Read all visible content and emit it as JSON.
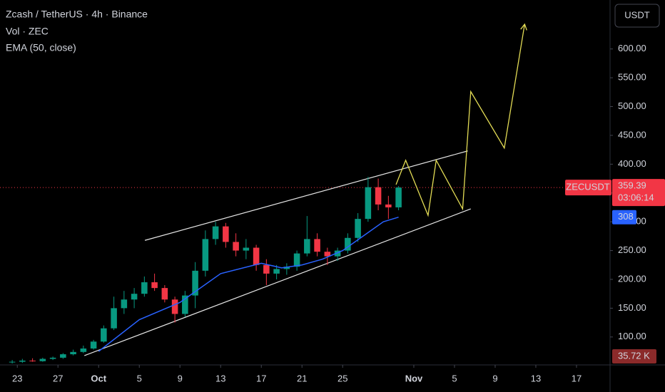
{
  "chart_data": {
    "type": "candlestick",
    "title": "Zcash / TetherUS · 4h · Binance",
    "indicators": [
      "Vol · ZEC",
      "EMA (50, close)"
    ],
    "currency": "USDT",
    "symbol": "ZECUSDT",
    "last_price": 359.39,
    "countdown": "03:06:14",
    "volume_label": "35.72 K",
    "colors": {
      "up": "#089981",
      "down": "#f23645",
      "ema": "#2962ff",
      "channel": "#e6e6e6",
      "projection": "#e3dc55",
      "price_line": "#f23645"
    },
    "xlim": [
      264.3,
      324.3
    ],
    "ylim": [
      51.5,
      685
    ],
    "grid": false,
    "xticks": [
      {
        "value": 266,
        "label": "23"
      },
      {
        "value": 270,
        "label": "27"
      },
      {
        "value": 274,
        "label": "Oct"
      },
      {
        "value": 278,
        "label": "5"
      },
      {
        "value": 282,
        "label": "9"
      },
      {
        "value": 286,
        "label": "13"
      },
      {
        "value": 290,
        "label": "17"
      },
      {
        "value": 294,
        "label": "21"
      },
      {
        "value": 298,
        "label": "25"
      },
      {
        "value": 305,
        "label": "Nov"
      },
      {
        "value": 309,
        "label": "5"
      },
      {
        "value": 313,
        "label": "9"
      },
      {
        "value": 317,
        "label": "13"
      },
      {
        "value": 321,
        "label": "17"
      }
    ],
    "yticks": [
      {
        "value": 100,
        "label": "100.00"
      },
      {
        "value": 150,
        "label": "150.00"
      },
      {
        "value": 200,
        "label": "200.00"
      },
      {
        "value": 250,
        "label": "250.00"
      },
      {
        "value": 300,
        "label": "300.00"
      },
      {
        "value": 350,
        "label": "350.00"
      },
      {
        "value": 400,
        "label": "400.00"
      },
      {
        "value": 450,
        "label": "450.00"
      },
      {
        "value": 500,
        "label": "500.00"
      },
      {
        "value": 550,
        "label": "550.00"
      },
      {
        "value": 600,
        "label": "600.00"
      }
    ],
    "x": [
      265.5,
      266.5,
      267.5,
      268.5,
      269.5,
      270.5,
      271.5,
      272.5,
      273.5,
      274.5,
      275.5,
      276.5,
      277.5,
      278.5,
      279.5,
      280.5,
      281.5,
      282.5,
      283.5,
      284.5,
      285.5,
      286.5,
      287.5,
      288.5,
      289.5,
      290.5,
      291.5,
      292.5,
      293.5,
      294.5,
      295.5,
      296.5,
      297.5,
      298.5,
      299.5,
      300.5,
      301.5,
      302.5,
      303.5
    ],
    "open": [
      56,
      57,
      59,
      58,
      62,
      64,
      70,
      74,
      80,
      92,
      115,
      150,
      165,
      175,
      195,
      185,
      165,
      140,
      172,
      215,
      270,
      292,
      265,
      250,
      255,
      225,
      210,
      218,
      222,
      245,
      270,
      248,
      240,
      250,
      272,
      305,
      360,
      330,
      325
    ],
    "high": [
      60,
      62,
      63,
      64,
      66,
      72,
      78,
      85,
      95,
      120,
      170,
      180,
      185,
      205,
      210,
      190,
      170,
      180,
      230,
      285,
      300,
      298,
      280,
      270,
      260,
      235,
      225,
      228,
      250,
      310,
      280,
      255,
      255,
      280,
      315,
      378,
      375,
      345,
      362
    ],
    "low": [
      54,
      55,
      57,
      57,
      60,
      62,
      68,
      72,
      78,
      90,
      112,
      140,
      150,
      170,
      180,
      160,
      125,
      135,
      150,
      205,
      260,
      255,
      240,
      235,
      215,
      190,
      200,
      208,
      215,
      240,
      240,
      225,
      232,
      245,
      265,
      300,
      320,
      305,
      320
    ],
    "close": [
      57,
      59,
      58,
      62,
      64,
      70,
      74,
      80,
      92,
      115,
      150,
      165,
      175,
      195,
      185,
      165,
      140,
      172,
      215,
      270,
      292,
      265,
      250,
      255,
      225,
      210,
      218,
      222,
      245,
      270,
      248,
      240,
      250,
      272,
      305,
      360,
      330,
      325,
      359.39
    ],
    "ema": {
      "name": "EMA",
      "value_label": 308,
      "x": [
        274,
        278,
        282,
        286,
        290,
        292,
        294,
        296,
        298,
        300,
        302,
        303.5
      ],
      "values": [
        75,
        130,
        160,
        210,
        228,
        220,
        225,
        235,
        250,
        275,
        300,
        308
      ]
    },
    "channel_upper": {
      "x": [
        278.55,
        310.3
      ],
      "values": [
        267.7,
        423
      ]
    },
    "channel_lower": {
      "x": [
        272.6,
        310.6
      ],
      "values": [
        67.7,
        322.4
      ]
    },
    "projection": {
      "x": [
        303.25,
        304.2,
        306.4,
        307.2,
        309.8,
        310.6,
        313.9,
        315.9
      ],
      "values": [
        364.6,
        406.8,
        311.2,
        406.8,
        322.4,
        526,
        428,
        643
      ]
    }
  }
}
